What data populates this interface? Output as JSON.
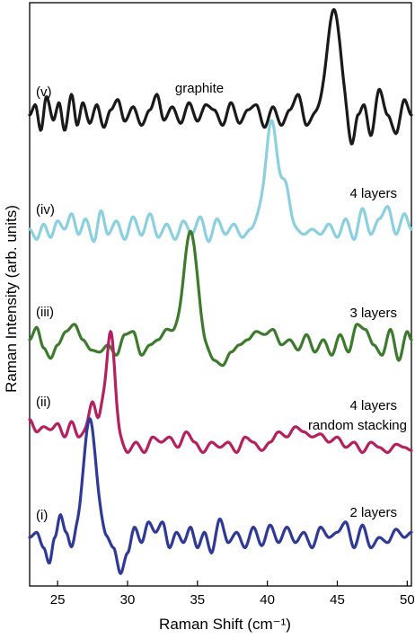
{
  "chart_data": {
    "type": "line",
    "xlabel": "Raman Shift (cm⁻¹)",
    "ylabel": "Raman Intensity (arb. units)",
    "xlim": [
      23,
      50.3
    ],
    "x_ticks": [
      "25",
      "30",
      "35",
      "40",
      "45",
      "50"
    ],
    "y_ticks_shown": false,
    "grid": false,
    "series": [
      {
        "name": "graphite",
        "tag": "(v)",
        "label_lines": [
          "graphite"
        ],
        "color": "#1a1a1a",
        "offset": 4.0,
        "peak_center": 44.8,
        "peak_height": 1.05,
        "peak_width": 0.52,
        "noise_amp": 0.12,
        "noise": [
          [
            23.0,
            0.0
          ],
          [
            23.4,
            0.1
          ],
          [
            23.8,
            -0.15
          ],
          [
            24.2,
            0.18
          ],
          [
            24.7,
            -0.05
          ],
          [
            25.1,
            0.12
          ],
          [
            25.5,
            -0.15
          ],
          [
            26.0,
            0.2
          ],
          [
            26.4,
            -0.1
          ],
          [
            26.8,
            0.12
          ],
          [
            27.3,
            -0.08
          ],
          [
            27.8,
            0.1
          ],
          [
            28.3,
            -0.12
          ],
          [
            28.8,
            0.05
          ],
          [
            29.3,
            0.15
          ],
          [
            29.8,
            -0.06
          ],
          [
            30.4,
            0.08
          ],
          [
            31.0,
            -0.1
          ],
          [
            31.6,
            0.05
          ],
          [
            32.1,
            0.2
          ],
          [
            32.6,
            -0.05
          ],
          [
            33.2,
            0.08
          ],
          [
            33.8,
            -0.08
          ],
          [
            34.4,
            0.12
          ],
          [
            35.0,
            -0.06
          ],
          [
            35.6,
            0.1
          ],
          [
            36.2,
            0.05
          ],
          [
            36.8,
            -0.1
          ],
          [
            37.4,
            0.12
          ],
          [
            38.0,
            -0.08
          ],
          [
            38.6,
            0.05
          ],
          [
            39.2,
            0.1
          ],
          [
            39.8,
            -0.12
          ],
          [
            40.4,
            0.08
          ],
          [
            41.0,
            -0.1
          ],
          [
            41.6,
            0.05
          ],
          [
            42.2,
            0.2
          ],
          [
            42.8,
            -0.1
          ],
          [
            43.4,
            0.0
          ],
          [
            44.5,
            0.0
          ],
          [
            45.5,
            -0.15
          ],
          [
            46.0,
            -0.35
          ],
          [
            46.5,
            0.0
          ],
          [
            46.9,
            0.1
          ],
          [
            47.4,
            -0.2
          ],
          [
            48.0,
            0.25
          ],
          [
            48.6,
            0.0
          ],
          [
            49.2,
            -0.18
          ],
          [
            49.8,
            0.15
          ],
          [
            50.3,
            0.0
          ]
        ]
      },
      {
        "name": "4 layers",
        "tag": "(iv)",
        "label_lines": [
          "4 layers"
        ],
        "color": "#8cd0e0",
        "offset": 3.0,
        "peak_center": 40.3,
        "peak_height": 1.05,
        "peak_width": 0.42,
        "extra_peaks": [
          [
            41.3,
            0.4,
            0.3
          ]
        ],
        "noise_amp": 0.12,
        "noise": [
          [
            23.0,
            0.0
          ],
          [
            23.5,
            -0.1
          ],
          [
            24.0,
            0.05
          ],
          [
            24.5,
            -0.08
          ],
          [
            25.0,
            0.08
          ],
          [
            25.5,
            0.0
          ],
          [
            26.0,
            0.15
          ],
          [
            26.5,
            -0.05
          ],
          [
            27.0,
            0.1
          ],
          [
            27.6,
            -0.12
          ],
          [
            28.1,
            0.18
          ],
          [
            28.6,
            -0.05
          ],
          [
            29.2,
            0.08
          ],
          [
            29.8,
            -0.1
          ],
          [
            30.4,
            0.12
          ],
          [
            31.0,
            -0.06
          ],
          [
            31.6,
            0.15
          ],
          [
            32.2,
            -0.08
          ],
          [
            32.8,
            0.05
          ],
          [
            33.4,
            -0.1
          ],
          [
            34.0,
            0.08
          ],
          [
            34.6,
            -0.05
          ],
          [
            35.2,
            0.12
          ],
          [
            35.8,
            -0.12
          ],
          [
            36.4,
            0.1
          ],
          [
            37.0,
            -0.05
          ],
          [
            37.6,
            0.05
          ],
          [
            38.2,
            -0.08
          ],
          [
            38.8,
            0.0
          ],
          [
            39.4,
            0.1
          ],
          [
            40.0,
            0.0
          ],
          [
            42.0,
            0.0
          ],
          [
            42.6,
            -0.05
          ],
          [
            43.2,
            0.0
          ],
          [
            43.8,
            -0.05
          ],
          [
            44.4,
            0.05
          ],
          [
            45.0,
            -0.08
          ],
          [
            45.6,
            0.1
          ],
          [
            46.2,
            -0.1
          ],
          [
            46.8,
            0.2
          ],
          [
            47.4,
            -0.05
          ],
          [
            48.0,
            0.1
          ],
          [
            48.6,
            0.22
          ],
          [
            49.2,
            -0.05
          ],
          [
            49.8,
            0.15
          ],
          [
            50.3,
            0.0
          ]
        ]
      },
      {
        "name": "3 layers",
        "tag": "(iii)",
        "label_lines": [
          "3 layers"
        ],
        "color": "#3d7a2e",
        "offset": 2.0,
        "peak_center": 34.5,
        "peak_height": 1.05,
        "peak_width": 0.48,
        "noise_amp": 0.12,
        "noise": [
          [
            23.0,
            0.0
          ],
          [
            23.5,
            0.12
          ],
          [
            24.0,
            -0.08
          ],
          [
            24.5,
            -0.18
          ],
          [
            25.0,
            -0.05
          ],
          [
            25.6,
            0.08
          ],
          [
            26.2,
            0.15
          ],
          [
            26.8,
            0.0
          ],
          [
            27.4,
            -0.1
          ],
          [
            28.0,
            -0.12
          ],
          [
            28.6,
            -0.05
          ],
          [
            29.2,
            -0.15
          ],
          [
            29.8,
            0.05
          ],
          [
            30.4,
            0.08
          ],
          [
            31.0,
            -0.15
          ],
          [
            31.6,
            -0.05
          ],
          [
            32.2,
            0.0
          ],
          [
            32.8,
            0.1
          ],
          [
            33.4,
            0.05
          ],
          [
            34.0,
            0.0
          ],
          [
            35.0,
            0.0
          ],
          [
            35.6,
            -0.1
          ],
          [
            36.2,
            -0.2
          ],
          [
            36.8,
            -0.25
          ],
          [
            37.4,
            -0.12
          ],
          [
            38.0,
            -0.05
          ],
          [
            38.6,
            0.0
          ],
          [
            39.2,
            0.08
          ],
          [
            39.8,
            0.05
          ],
          [
            40.4,
            0.1
          ],
          [
            41.0,
            -0.05
          ],
          [
            41.6,
            0.0
          ],
          [
            42.2,
            -0.1
          ],
          [
            42.8,
            0.05
          ],
          [
            43.4,
            -0.12
          ],
          [
            44.0,
            0.0
          ],
          [
            44.6,
            -0.15
          ],
          [
            45.2,
            0.05
          ],
          [
            45.8,
            -0.12
          ],
          [
            46.4,
            0.15
          ],
          [
            47.0,
            0.1
          ],
          [
            47.6,
            -0.05
          ],
          [
            48.2,
            -0.15
          ],
          [
            48.8,
            0.1
          ],
          [
            49.4,
            -0.2
          ],
          [
            50.0,
            0.08
          ],
          [
            50.3,
            0.0
          ]
        ]
      },
      {
        "name": "4 layers random stacking",
        "tag": "(ii)",
        "label_lines": [
          "4 layers",
          "random stacking"
        ],
        "color": "#b3225f",
        "offset": 1.0,
        "peak_center": 28.8,
        "peak_height": 1.05,
        "peak_width": 0.3,
        "extra_peaks": [
          [
            27.5,
            0.3,
            0.25
          ],
          [
            28.2,
            0.22,
            0.2
          ]
        ],
        "noise_amp": 0.12,
        "noise": [
          [
            23.0,
            0.22
          ],
          [
            23.5,
            0.1
          ],
          [
            24.0,
            0.15
          ],
          [
            24.5,
            0.12
          ],
          [
            25.0,
            0.18
          ],
          [
            25.5,
            0.05
          ],
          [
            26.0,
            0.2
          ],
          [
            26.5,
            0.05
          ],
          [
            27.0,
            0.1
          ],
          [
            29.5,
            0.0
          ],
          [
            30.0,
            -0.1
          ],
          [
            30.6,
            0.0
          ],
          [
            31.2,
            -0.1
          ],
          [
            31.8,
            0.05
          ],
          [
            32.4,
            0.0
          ],
          [
            33.0,
            0.05
          ],
          [
            33.6,
            -0.05
          ],
          [
            34.2,
            0.1
          ],
          [
            34.8,
            0.0
          ],
          [
            35.4,
            -0.1
          ],
          [
            36.0,
            0.0
          ],
          [
            36.6,
            -0.05
          ],
          [
            37.2,
            0.0
          ],
          [
            37.8,
            -0.1
          ],
          [
            38.4,
            0.05
          ],
          [
            39.0,
            0.0
          ],
          [
            39.6,
            -0.08
          ],
          [
            40.2,
            0.0
          ],
          [
            40.8,
            0.1
          ],
          [
            41.4,
            0.05
          ],
          [
            42.0,
            0.15
          ],
          [
            42.6,
            0.1
          ],
          [
            43.2,
            0.05
          ],
          [
            43.8,
            0.08
          ],
          [
            44.4,
            0.0
          ],
          [
            45.0,
            0.05
          ],
          [
            45.6,
            -0.05
          ],
          [
            46.2,
            0.0
          ],
          [
            46.8,
            -0.1
          ],
          [
            47.4,
            0.0
          ],
          [
            48.0,
            -0.05
          ],
          [
            48.6,
            -0.1
          ],
          [
            49.2,
            -0.02
          ],
          [
            49.8,
            -0.05
          ],
          [
            50.3,
            -0.08
          ]
        ]
      },
      {
        "name": "2 layers",
        "tag": "(i)",
        "label_lines": [
          "2 layers"
        ],
        "color": "#2f3a96",
        "offset": 0.0,
        "peak_center": 27.3,
        "peak_height": 1.05,
        "peak_width": 0.42,
        "noise_amp": 0.12,
        "noise": [
          [
            23.0,
            0.0
          ],
          [
            23.5,
            0.05
          ],
          [
            24.0,
            -0.1
          ],
          [
            24.4,
            -0.25
          ],
          [
            24.8,
            0.0
          ],
          [
            25.2,
            0.22
          ],
          [
            25.6,
            0.05
          ],
          [
            26.0,
            -0.1
          ],
          [
            26.4,
            0.05
          ],
          [
            26.8,
            0.1
          ],
          [
            28.0,
            0.1
          ],
          [
            28.5,
            0.0
          ],
          [
            29.0,
            -0.1
          ],
          [
            29.5,
            -0.35
          ],
          [
            30.0,
            -0.15
          ],
          [
            30.5,
            0.1
          ],
          [
            31.0,
            -0.05
          ],
          [
            31.5,
            0.15
          ],
          [
            32.0,
            0.05
          ],
          [
            32.5,
            0.15
          ],
          [
            33.0,
            -0.1
          ],
          [
            33.5,
            0.05
          ],
          [
            34.0,
            -0.05
          ],
          [
            34.5,
            0.1
          ],
          [
            35.0,
            -0.1
          ],
          [
            35.5,
            0.05
          ],
          [
            36.0,
            -0.15
          ],
          [
            36.6,
            0.18
          ],
          [
            37.2,
            -0.05
          ],
          [
            37.8,
            0.05
          ],
          [
            38.4,
            -0.1
          ],
          [
            39.0,
            0.1
          ],
          [
            39.6,
            -0.08
          ],
          [
            40.2,
            0.12
          ],
          [
            40.8,
            -0.05
          ],
          [
            41.4,
            0.1
          ],
          [
            42.0,
            -0.05
          ],
          [
            42.6,
            0.05
          ],
          [
            43.2,
            -0.1
          ],
          [
            43.8,
            0.1
          ],
          [
            44.4,
            0.0
          ],
          [
            45.0,
            0.05
          ],
          [
            45.6,
            0.15
          ],
          [
            46.2,
            -0.1
          ],
          [
            46.8,
            0.12
          ],
          [
            47.4,
            -0.1
          ],
          [
            48.0,
            0.0
          ],
          [
            48.6,
            -0.05
          ],
          [
            49.2,
            0.08
          ],
          [
            49.8,
            0.0
          ],
          [
            50.3,
            0.05
          ]
        ]
      }
    ]
  }
}
